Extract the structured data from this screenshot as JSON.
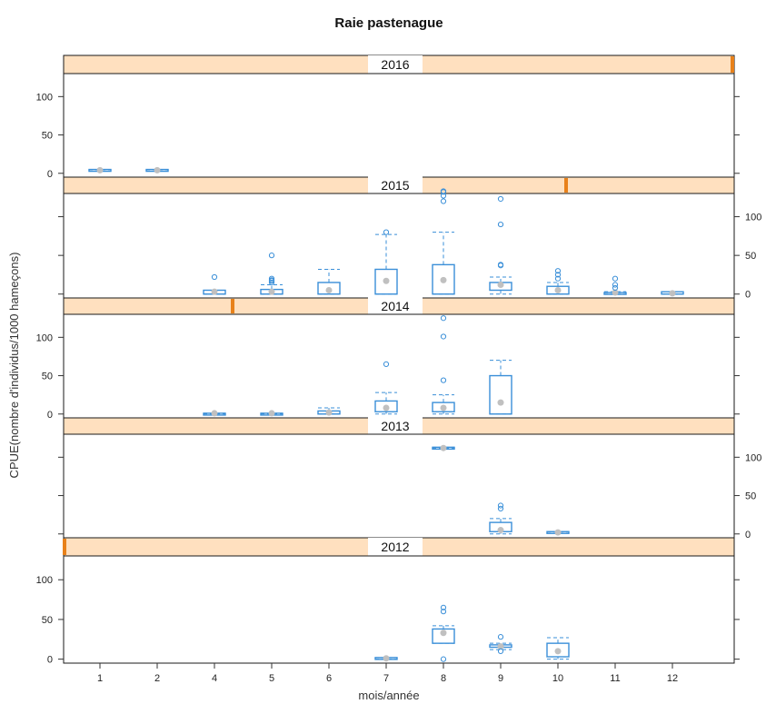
{
  "chart_data": {
    "type": "box",
    "title": "Raie pastenague",
    "xlabel": "mois/année",
    "ylabel": "CPUE(nombre d'individus/1000 hameçons)",
    "x_ticks": [
      "1",
      "2",
      "4",
      "5",
      "6",
      "7",
      "8",
      "9",
      "10",
      "11",
      "12"
    ],
    "y_ticks": [
      0,
      50,
      100
    ],
    "ylim": [
      -5,
      130
    ],
    "axis_side": {
      "2016": "left",
      "2015": "right",
      "2014": "left",
      "2013": "right",
      "2012": "left"
    },
    "colors": {
      "strip_fill": "#ffe0bf",
      "strip_bar": "#e8811a",
      "box": "#3a8fd8",
      "median_dot": "#c0c0c0",
      "frame": "#1a1a1a"
    },
    "panels": [
      {
        "year": "2016",
        "strip_indicator": "right-edge",
        "boxes": [
          {
            "month": "1",
            "q1": 3,
            "median": 4,
            "q3": 5,
            "wlo": 3,
            "whi": 5,
            "outliers": []
          },
          {
            "month": "2",
            "q1": 3,
            "median": 4,
            "q3": 5,
            "wlo": 3,
            "whi": 5,
            "outliers": []
          }
        ]
      },
      {
        "year": "2015",
        "strip_indicator": "mid",
        "boxes": [
          {
            "month": "4",
            "q1": 0,
            "median": 3,
            "q3": 5,
            "wlo": 0,
            "whi": 5,
            "outliers": [
              22
            ]
          },
          {
            "month": "5",
            "q1": 0,
            "median": 3,
            "q3": 6,
            "wlo": 0,
            "whi": 12,
            "outliers": [
              15,
              17,
              18,
              20,
              50
            ]
          },
          {
            "month": "6",
            "q1": 0,
            "median": 5,
            "q3": 15,
            "wlo": 0,
            "whi": 32,
            "outliers": []
          },
          {
            "month": "7",
            "q1": 0,
            "median": 17,
            "q3": 32,
            "wlo": 0,
            "whi": 77,
            "outliers": [
              80
            ]
          },
          {
            "month": "8",
            "q1": 0,
            "median": 18,
            "q3": 38,
            "wlo": 0,
            "whi": 80,
            "outliers": [
              120,
              127,
              132,
              133
            ]
          },
          {
            "month": "9",
            "q1": 5,
            "median": 12,
            "q3": 15,
            "wlo": 0,
            "whi": 22,
            "outliers": [
              37,
              38,
              90,
              123
            ]
          },
          {
            "month": "10",
            "q1": 0,
            "median": 5,
            "q3": 10,
            "wlo": 0,
            "whi": 15,
            "outliers": [
              20,
              25,
              30
            ]
          },
          {
            "month": "11",
            "q1": 0,
            "median": 2,
            "q3": 2,
            "wlo": 0,
            "whi": 3,
            "outliers": [
              8,
              12,
              20
            ]
          },
          {
            "month": "12",
            "q1": 0,
            "median": 1,
            "q3": 3,
            "wlo": 0,
            "whi": 3,
            "outliers": []
          }
        ]
      },
      {
        "year": "2014",
        "strip_indicator": "left",
        "boxes": [
          {
            "month": "4",
            "q1": 0,
            "median": 1,
            "q3": 1,
            "wlo": 0,
            "whi": 1,
            "outliers": []
          },
          {
            "month": "5",
            "q1": 0,
            "median": 1,
            "q3": 1,
            "wlo": 0,
            "whi": 1,
            "outliers": []
          },
          {
            "month": "6",
            "q1": 0,
            "median": 2,
            "q3": 4,
            "wlo": 0,
            "whi": 8,
            "outliers": []
          },
          {
            "month": "7",
            "q1": 3,
            "median": 8,
            "q3": 17,
            "wlo": 0,
            "whi": 28,
            "outliers": [
              65
            ]
          },
          {
            "month": "8",
            "q1": 3,
            "median": 8,
            "q3": 15,
            "wlo": 0,
            "whi": 25,
            "outliers": [
              44,
              101,
              125
            ]
          },
          {
            "month": "9",
            "q1": 0,
            "median": 15,
            "q3": 50,
            "wlo": 0,
            "whi": 70,
            "outliers": []
          }
        ]
      },
      {
        "year": "2013",
        "strip_indicator": "none",
        "boxes": [
          {
            "month": "8",
            "q1": 112,
            "median": 112,
            "q3": 113,
            "wlo": 112,
            "whi": 113,
            "outliers": []
          },
          {
            "month": "9",
            "q1": 3,
            "median": 5,
            "q3": 15,
            "wlo": 0,
            "whi": 20,
            "outliers": [
              33,
              37
            ]
          },
          {
            "month": "10",
            "q1": 1,
            "median": 2,
            "q3": 3,
            "wlo": 1,
            "whi": 3,
            "outliers": []
          }
        ]
      },
      {
        "year": "2012",
        "strip_indicator": "left-edge",
        "boxes": [
          {
            "month": "7",
            "q1": 0,
            "median": 1,
            "q3": 2,
            "wlo": 0,
            "whi": 2,
            "outliers": []
          },
          {
            "month": "8",
            "q1": 20,
            "median": 33,
            "q3": 38,
            "wlo": 20,
            "whi": 42,
            "outliers": [
              0,
              60,
              65
            ]
          },
          {
            "month": "9",
            "q1": 15,
            "median": 16,
            "q3": 18,
            "wlo": 12,
            "whi": 20,
            "outliers": [
              10,
              28
            ]
          },
          {
            "month": "10",
            "q1": 3,
            "median": 10,
            "q3": 20,
            "wlo": 0,
            "whi": 27,
            "outliers": []
          }
        ]
      }
    ]
  }
}
